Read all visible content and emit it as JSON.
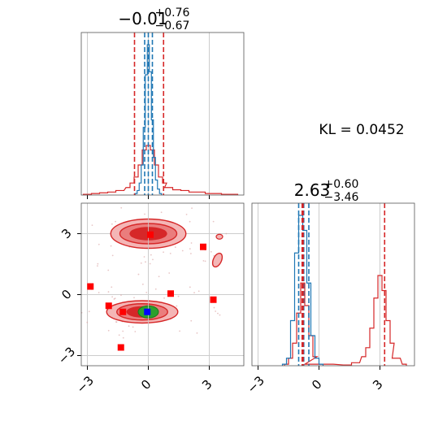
{
  "chart_data": {
    "type": "corner",
    "annotation": "KL = 0.0452",
    "colors": {
      "red": "#d62728",
      "blue": "#1f77b4",
      "green": "#2ca02c",
      "grid": "#cccccc"
    },
    "params": [
      {
        "title_main": "−0.01",
        "title_sup": "+0.76",
        "title_sub": "−0.67",
        "median": -0.01,
        "q_low": -0.68,
        "q_high": 0.75,
        "blue_median": 0.0,
        "blue_q": [
          -0.18,
          0.2
        ]
      },
      {
        "title_main": "2.63",
        "title_sup": "+0.60",
        "title_sub": "−3.46",
        "median": 2.63,
        "q_low": -0.83,
        "q_high": 3.23,
        "blue_median": -0.75,
        "blue_q": [
          -1.0,
          -0.5
        ]
      }
    ],
    "x_ticks": [
      "−3",
      "0",
      "3"
    ],
    "y_ticks": [
      "3",
      "0",
      "−3"
    ],
    "tick_values": [
      -3,
      0,
      3
    ],
    "xlim": [
      -3.3,
      4.7
    ],
    "ylim_2d": [
      -3.5,
      4.5
    ],
    "modes_2d": [
      {
        "x": 0.0,
        "y": 3.0,
        "rx": [
          1.85,
          1.4,
          0.9
        ],
        "ry": [
          0.72,
          0.5,
          0.3
        ]
      },
      {
        "x": -0.3,
        "y": -0.85,
        "rx": [
          1.75,
          1.25,
          0.75
        ],
        "ry": [
          0.55,
          0.4,
          0.25
        ]
      }
    ],
    "blue_mode_2d": {
      "x": 0.0,
      "y": -0.85,
      "rx": 0.5,
      "ry": 0.3
    },
    "outlier_2d": {
      "x": 3.4,
      "y": 1.7
    },
    "red_markers": [
      {
        "x": -2.85,
        "y": 0.4
      },
      {
        "x": -1.95,
        "y": -0.55
      },
      {
        "x": -1.25,
        "y": -0.85
      },
      {
        "x": -1.35,
        "y": -2.6
      },
      {
        "x": 1.1,
        "y": 0.05
      },
      {
        "x": 2.7,
        "y": 2.35
      },
      {
        "x": 3.2,
        "y": -0.25
      },
      {
        "x": 0.1,
        "y": 2.95
      }
    ],
    "blue_marker": {
      "x": -0.05,
      "y": -0.85
    },
    "hist1_red": {
      "x": [
        -3.0,
        -2.6,
        -2.2,
        -1.8,
        -1.4,
        -1.0,
        -0.8,
        -0.6,
        -0.4,
        -0.2,
        0.0,
        0.2,
        0.4,
        0.6,
        0.8,
        1.0,
        1.4,
        1.8,
        2.2,
        2.6,
        3.0,
        3.4,
        3.8,
        4.2
      ],
      "y": [
        0.005,
        0.01,
        0.015,
        0.02,
        0.03,
        0.05,
        0.08,
        0.12,
        0.2,
        0.3,
        0.33,
        0.3,
        0.2,
        0.12,
        0.08,
        0.05,
        0.035,
        0.03,
        0.02,
        0.02,
        0.01,
        0.01,
        0.005,
        0.005
      ]
    },
    "hist1_blue": {
      "x": [
        -0.6,
        -0.5,
        -0.4,
        -0.3,
        -0.2,
        -0.1,
        0.0,
        0.1,
        0.2,
        0.3,
        0.4,
        0.5,
        0.6
      ],
      "y": [
        0.01,
        0.03,
        0.08,
        0.2,
        0.45,
        0.8,
        1.0,
        0.82,
        0.5,
        0.25,
        0.1,
        0.04,
        0.01
      ]
    },
    "hist2_red": {
      "x": [
        -1.6,
        -1.4,
        -1.2,
        -1.0,
        -0.8,
        -0.6,
        -0.4,
        -0.2,
        0.0,
        1.4,
        1.8,
        2.2,
        2.4,
        2.6,
        2.8,
        3.0,
        3.2,
        3.4,
        3.6,
        3.8,
        4.2
      ],
      "y": [
        0.01,
        0.05,
        0.15,
        0.35,
        0.55,
        0.4,
        0.2,
        0.06,
        0.01,
        0.005,
        0.02,
        0.06,
        0.12,
        0.25,
        0.45,
        0.6,
        0.5,
        0.3,
        0.15,
        0.05,
        0.01
      ]
    },
    "hist2_blue": {
      "x": [
        -1.7,
        -1.5,
        -1.3,
        -1.1,
        -0.9,
        -0.7,
        -0.5,
        -0.3,
        -0.1,
        0.1
      ],
      "y": [
        0.01,
        0.05,
        0.3,
        0.75,
        1.0,
        0.9,
        0.55,
        0.2,
        0.05,
        0.01
      ]
    }
  }
}
